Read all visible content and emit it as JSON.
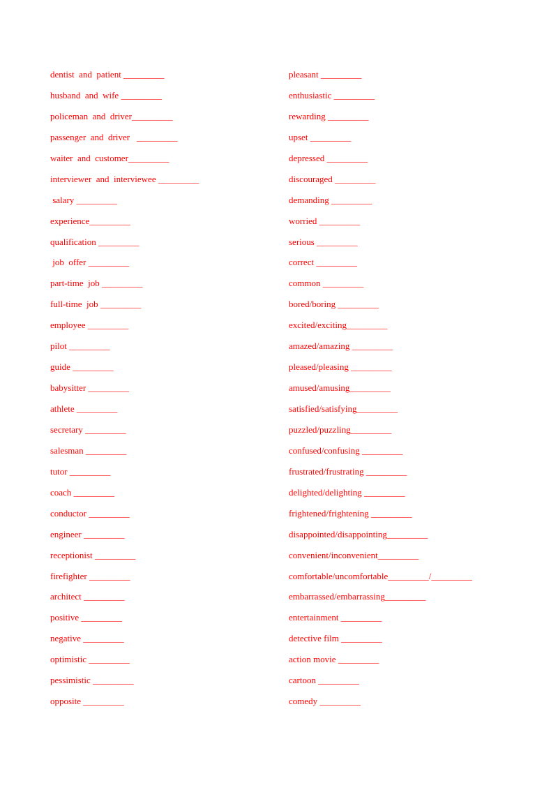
{
  "left": {
    "items": [
      "dentist  and  patient _________",
      "husband  and  wife _________",
      "policeman  and  driver_________",
      "passenger  and  driver   _________",
      "waiter  and  customer_________",
      "interviewer  and  interviewee _________",
      " salary _________",
      "experience_________",
      "qualification _________",
      " job  offer _________",
      "part-time  job _________",
      "full-time  job _________",
      "employee _________",
      "pilot _________",
      "guide _________",
      "babysitter _________",
      "athlete _________",
      "secretary _________",
      "salesman _________",
      "tutor _________",
      "coach _________",
      "conductor _________",
      "engineer _________",
      "receptionist _________",
      "firefighter _________",
      "architect _________",
      "positive _________",
      "negative _________",
      "optimistic _________",
      "pessimistic _________",
      "opposite _________"
    ]
  },
  "right": {
    "items": [
      "pleasant _________",
      "enthusiastic _________",
      "rewarding _________",
      "upset _________",
      "depressed _________",
      "discouraged _________",
      "demanding _________",
      "worried _________",
      "serious _________",
      "correct _________",
      "common _________",
      "bored/boring _________",
      "excited/exciting_________",
      "amazed/amazing _________",
      "pleased/pleasing _________",
      "amused/amusing_________",
      "satisfied/satisfying_________",
      "puzzled/puzzling_________",
      "confused/confusing _________",
      "frustrated/frustrating _________",
      "delighted/delighting _________",
      "frightened/frightening _________",
      "disappointed/disappointing_________",
      "convenient/inconvenient_________",
      "comfortable/uncomfortable_________/_________",
      "embarrassed/embarrassing_________",
      "entertainment _________",
      "detective film _________",
      "action movie _________",
      "cartoon _________",
      "comedy _________"
    ]
  }
}
